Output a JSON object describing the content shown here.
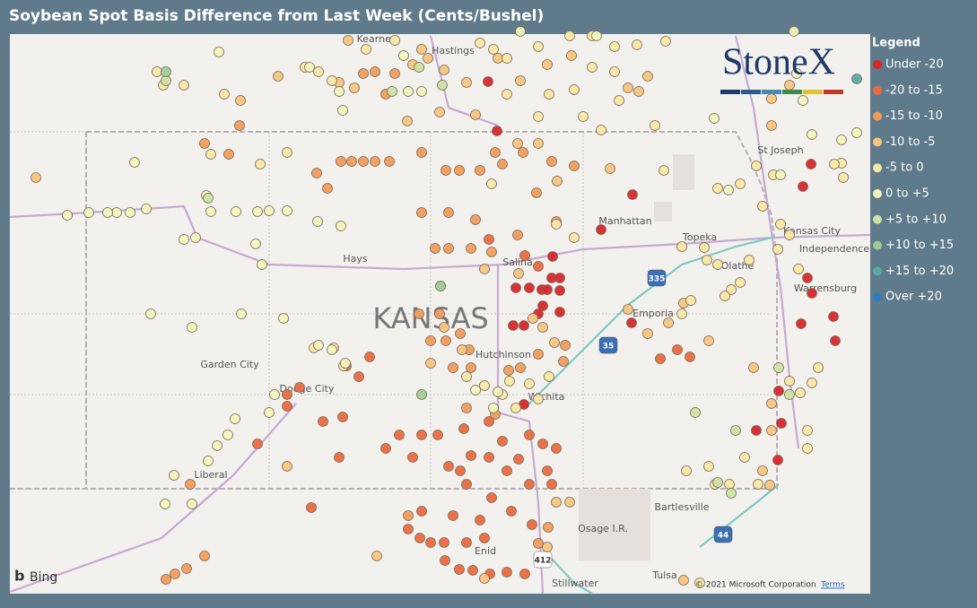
{
  "header": {
    "title": "Soybean Spot Basis Difference from Last Week (Cents/Bushel)"
  },
  "legend": {
    "title": "Legend",
    "items": [
      {
        "label": "Under -20",
        "color": "#d7262b"
      },
      {
        "label": "-20 to -15",
        "color": "#ea6a3f"
      },
      {
        "label": "-15 to -10",
        "color": "#f29c5c"
      },
      {
        "label": "-10 to -5",
        "color": "#f7c481"
      },
      {
        "label": "-5 to 0",
        "color": "#f8e7a6"
      },
      {
        "label": "0 to +5",
        "color": "#f1f5bd"
      },
      {
        "label": "+5 to +10",
        "color": "#cce3a3"
      },
      {
        "label": "+10 to +15",
        "color": "#9fcd95"
      },
      {
        "label": "+15 to +20",
        "color": "#5aa9a2"
      },
      {
        "label": "Over +20",
        "color": "#2f7dbb"
      }
    ]
  },
  "map": {
    "state_label": "KANSAS",
    "cities": [
      "Kearney",
      "Hastings",
      "St Joseph",
      "Manhattan",
      "Topeka",
      "Kansas City",
      "Independence",
      "Olathe",
      "Hays",
      "Salina",
      "Emporia",
      "Warrensburg",
      "Hutchinson",
      "Garden City",
      "Dodge City",
      "Wichita",
      "Liberal",
      "Bartlesville",
      "Osage I.R.",
      "Enid",
      "Stillwater",
      "Tulsa"
    ],
    "shields": [
      "335",
      "35",
      "412",
      "44"
    ],
    "logo": "StoneX",
    "provider": "Bing",
    "copyright": "© 2021 Microsoft Corporation",
    "terms": "Terms"
  }
}
